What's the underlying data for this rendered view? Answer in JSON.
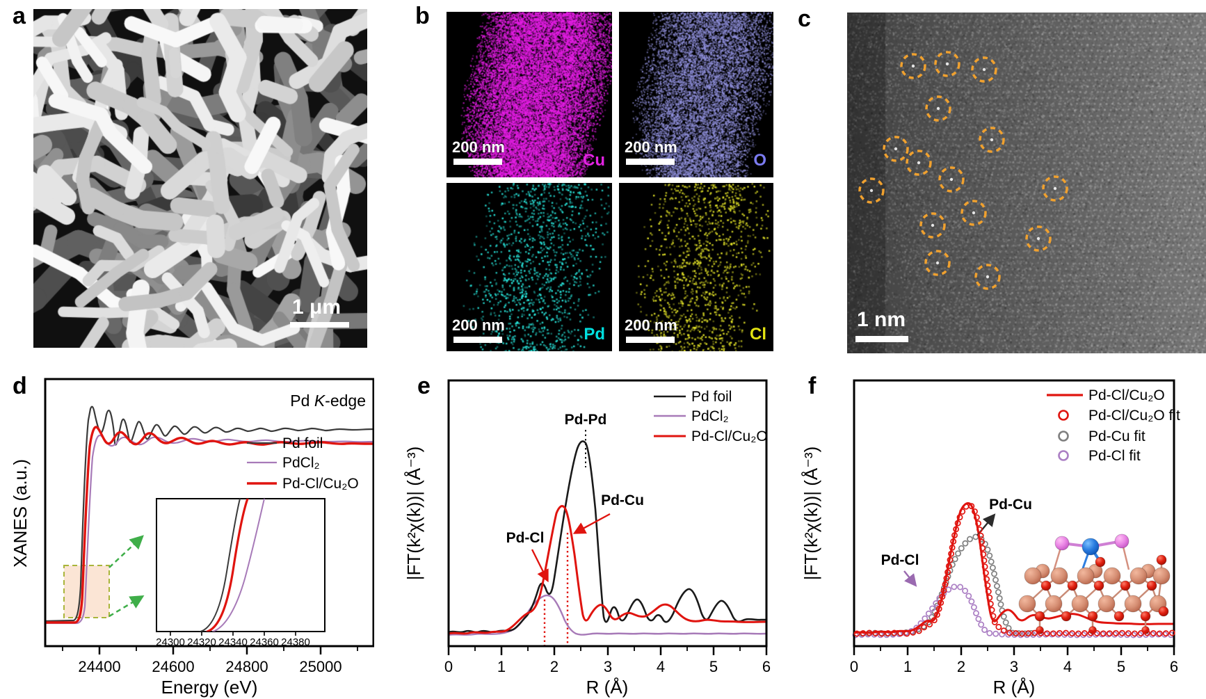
{
  "colors": {
    "red": "#e0140f",
    "purple": "#a77ab8",
    "dark": "#2b2b2b",
    "black_curve": "#1a1a1a",
    "gray_fit": "#7f7f7f",
    "purple_fit": "#ab7fc4",
    "green_arrow": "#3fae49",
    "box_fill": "#fbe5d5",
    "box_border": "#a9b53a",
    "orange_circle": "#f0a12f",
    "cu_map": "#e322e3",
    "o_map": "#7b7bf0",
    "pd_map": "#00dfdf",
    "cl_map": "#e3e312"
  },
  "panels": {
    "a": {
      "label": "a",
      "scale_bar": "1 μm"
    },
    "b": {
      "label": "b",
      "maps": [
        {
          "element": "Cu",
          "scale_bar": "200 nm"
        },
        {
          "element": "O",
          "scale_bar": "200 nm"
        },
        {
          "element": "Pd",
          "scale_bar": "200 nm"
        },
        {
          "element": "Cl",
          "scale_bar": "200 nm"
        }
      ]
    },
    "c": {
      "label": "c",
      "scale_bar": "1 nm"
    },
    "d": {
      "label": "d",
      "title_pre": "Pd ",
      "title_k": "K",
      "title_post": "-edge",
      "ylabel": "XANES (a.u.)",
      "xlabel": "Energy (eV)",
      "xticks": [
        "24400",
        "24600",
        "24800",
        "25000"
      ],
      "inset_xticks": [
        "24300",
        "24320",
        "24340",
        "24360",
        "24380"
      ],
      "legend": [
        {
          "label": "Pd foil"
        },
        {
          "label": "PdCl₂"
        },
        {
          "label": "Pd-Cl/Cu₂O"
        }
      ]
    },
    "e": {
      "label": "e",
      "ylabel": "|FT(k²χ(k))| (Å⁻³)",
      "xlabel": "R (Å)",
      "xticks": [
        "0",
        "1",
        "2",
        "3",
        "4",
        "5",
        "6"
      ],
      "legend": [
        {
          "label": "Pd foil"
        },
        {
          "label": "PdCl₂"
        },
        {
          "label": "Pd-Cl/Cu₂O"
        }
      ],
      "ann_pdpd": "Pd-Pd",
      "ann_pdcu": "Pd-Cu",
      "ann_pdcl": "Pd-Cl"
    },
    "f": {
      "label": "f",
      "ylabel": "|FT(k²χ(k))| (Å⁻³)",
      "xlabel": "R (Å)",
      "xticks": [
        "0",
        "1",
        "2",
        "3",
        "4",
        "5",
        "6"
      ],
      "legend": [
        {
          "label": "Pd-Cl/Cu₂O"
        },
        {
          "label": "Pd-Cl/Cu₂O fit"
        },
        {
          "label": "Pd-Cu fit"
        },
        {
          "label": "Pd-Cl fit"
        }
      ],
      "ann_pdcu": "Pd-Cu",
      "ann_pdcl": "Pd-Cl"
    }
  },
  "chart_data": [
    {
      "id": "d",
      "type": "line",
      "title": "Pd K-edge",
      "xlabel": "Energy (eV)",
      "ylabel": "XANES (a.u.)",
      "xlim": [
        24250,
        25140
      ],
      "xticks": [
        24400,
        24600,
        24800,
        25000
      ],
      "legend_position": "center-right",
      "series": [
        {
          "name": "Pd foil",
          "edge_eV": 24340,
          "whiteline_rel": 1.0,
          "oscillation": "large, decaying above edge"
        },
        {
          "name": "PdCl₂",
          "edge_eV": 24350,
          "oscillation": "small"
        },
        {
          "name": "Pd-Cl/Cu₂O",
          "edge_eV": 24345,
          "oscillation": "small, between foil and PdCl₂"
        }
      ],
      "inset": {
        "xlim": [
          24290,
          24395
        ],
        "xticks": [
          24300,
          24320,
          24340,
          24360,
          24380
        ],
        "note": "zoom of absorption edge; edge order left-to-right: Pd foil, Pd-Cl/Cu₂O, PdCl₂"
      }
    },
    {
      "id": "e",
      "type": "line",
      "xlabel": "R (Å)",
      "ylabel": "|FT(k²χ(k))| (Å⁻³)",
      "xlim": [
        0,
        6
      ],
      "annotations": [
        {
          "text": "Pd-Pd",
          "R": 2.5
        },
        {
          "text": "Pd-Cu",
          "R": 2.25
        },
        {
          "text": "Pd-Cl",
          "R": 1.82
        }
      ],
      "series": [
        {
          "name": "Pd foil",
          "points": [
            [
              0,
              0.02
            ],
            [
              0.5,
              0.03
            ],
            [
              1.0,
              0.03
            ],
            [
              1.3,
              0.04
            ],
            [
              1.55,
              0.12
            ],
            [
              1.75,
              0.2
            ],
            [
              1.95,
              0.17
            ],
            [
              2.2,
              0.45
            ],
            [
              2.5,
              0.72
            ],
            [
              2.7,
              0.35
            ],
            [
              2.85,
              0.06
            ],
            [
              3.05,
              0.12
            ],
            [
              3.5,
              0.15
            ],
            [
              3.75,
              0.06
            ],
            [
              4.0,
              0.08
            ],
            [
              4.5,
              0.18
            ],
            [
              4.8,
              0.06
            ],
            [
              5.05,
              0.14
            ],
            [
              5.5,
              0.05
            ],
            [
              6,
              0.04
            ]
          ]
        },
        {
          "name": "PdCl₂",
          "points": [
            [
              0,
              0.01
            ],
            [
              0.6,
              0.01
            ],
            [
              1.2,
              0.02
            ],
            [
              1.5,
              0.06
            ],
            [
              1.7,
              0.11
            ],
            [
              1.85,
              0.14
            ],
            [
              2.0,
              0.11
            ],
            [
              2.2,
              0.04
            ],
            [
              2.5,
              0.01
            ],
            [
              3,
              0.01
            ],
            [
              4,
              0.01
            ],
            [
              5,
              0.01
            ],
            [
              6,
              0.01
            ]
          ]
        },
        {
          "name": "Pd-Cl/Cu₂O",
          "points": [
            [
              0,
              0.01
            ],
            [
              0.5,
              0.02
            ],
            [
              1.0,
              0.03
            ],
            [
              1.3,
              0.05
            ],
            [
              1.6,
              0.1
            ],
            [
              1.8,
              0.2
            ],
            [
              1.95,
              0.35
            ],
            [
              2.1,
              0.49
            ],
            [
              2.3,
              0.28
            ],
            [
              2.55,
              0.06
            ],
            [
              2.9,
              0.11
            ],
            [
              3.1,
              0.06
            ],
            [
              3.3,
              0.09
            ],
            [
              3.9,
              0.1
            ],
            [
              4.3,
              0.06
            ],
            [
              5.0,
              0.04
            ],
            [
              6,
              0.03
            ]
          ]
        }
      ],
      "dashed_guides_R": [
        1.82,
        2.25
      ]
    },
    {
      "id": "f",
      "type": "line+scatter",
      "xlabel": "R (Å)",
      "ylabel": "|FT(k²χ(k))| (Å⁻³)",
      "xlim": [
        0,
        6
      ],
      "annotations": [
        {
          "text": "Pd-Cu",
          "R": 2.35
        },
        {
          "text": "Pd-Cl",
          "R": 1.93
        }
      ],
      "series": [
        {
          "name": "Pd-Cl/Cu₂O",
          "style": "line",
          "points": [
            [
              0,
              0.01
            ],
            [
              0.5,
              0.02
            ],
            [
              1.0,
              0.03
            ],
            [
              1.35,
              0.04
            ],
            [
              1.6,
              0.07
            ],
            [
              1.8,
              0.09
            ],
            [
              2.0,
              0.35
            ],
            [
              2.15,
              0.49
            ],
            [
              2.35,
              0.3
            ],
            [
              2.6,
              0.07
            ],
            [
              2.8,
              0.09
            ],
            [
              3.0,
              0.05
            ],
            [
              3.2,
              0.08
            ],
            [
              3.6,
              0.06
            ],
            [
              4.1,
              0.08
            ],
            [
              4.5,
              0.04
            ],
            [
              5.0,
              0.03
            ],
            [
              6,
              0.02
            ]
          ]
        },
        {
          "name": "Pd-Cl/Cu₂O fit",
          "style": "open-circles",
          "points": [
            [
              0.5,
              0.01
            ],
            [
              1.0,
              0.02
            ],
            [
              1.5,
              0.05
            ],
            [
              1.8,
              0.1
            ],
            [
              2.0,
              0.36
            ],
            [
              2.15,
              0.48
            ],
            [
              2.4,
              0.25
            ],
            [
              2.7,
              0.05
            ],
            [
              3.0,
              0.01
            ],
            [
              4.0,
              0.01
            ],
            [
              5.0,
              0.01
            ],
            [
              6,
              0.01
            ]
          ]
        },
        {
          "name": "Pd-Cu fit",
          "style": "open-circles",
          "points": [
            [
              1.3,
              0.01
            ],
            [
              1.6,
              0.04
            ],
            [
              1.9,
              0.15
            ],
            [
              2.1,
              0.3
            ],
            [
              2.35,
              0.36
            ],
            [
              2.6,
              0.2
            ],
            [
              2.85,
              0.05
            ],
            [
              3.1,
              0.01
            ]
          ]
        },
        {
          "name": "Pd-Cl fit",
          "style": "open-circles",
          "points": [
            [
              1.2,
              0.01
            ],
            [
              1.5,
              0.05
            ],
            [
              1.75,
              0.12
            ],
            [
              1.95,
              0.18
            ],
            [
              2.15,
              0.12
            ],
            [
              2.4,
              0.04
            ],
            [
              2.7,
              0.01
            ],
            [
              4.0,
              0.005
            ],
            [
              6,
              0.005
            ]
          ]
        }
      ],
      "inset": "ball-and-stick model of Pd-Cl species on Cu₂O surface (Cu salmon, O red, Pd blue, Cl magenta)"
    }
  ]
}
